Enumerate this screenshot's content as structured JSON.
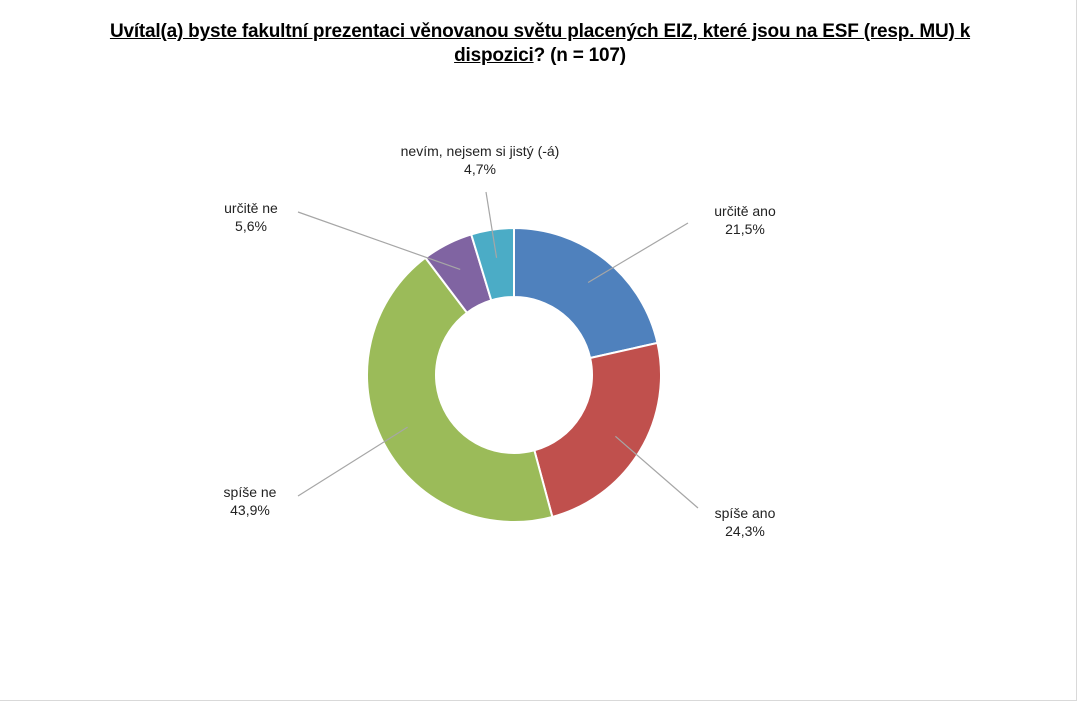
{
  "title": {
    "underlined": "Uvítal(a) byste fakultní prezentaci věnovanou světu placených EIZ, které jsou na ESF (resp. MU) k dispozici",
    "rest": "? (n = 107)"
  },
  "chart_data": {
    "type": "pie",
    "variant": "doughnut",
    "title": "Uvítal(a) byste fakultní prezentaci věnovanou světu placených EIZ, které jsou na ESF (resp. MU) k dispozici? (n = 107)",
    "categories": [
      "určitě ano",
      "spíše ano",
      "spíše ne",
      "určitě ne",
      "nevím, nejsem si jistý (-á)"
    ],
    "values": [
      21.5,
      24.3,
      43.9,
      5.6,
      4.7
    ],
    "value_labels": [
      "21,5%",
      "24,3%",
      "43,9%",
      "5,6%",
      "4,7%"
    ],
    "colors": [
      "#4f81bd",
      "#c0504d",
      "#9bbb59",
      "#8064a2",
      "#4bacc6"
    ],
    "legend": "none",
    "data_labels": "outside with leader lines"
  }
}
